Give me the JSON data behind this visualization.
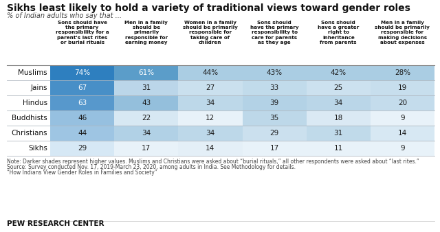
{
  "title": "Sikhs least likely to hold a variety of traditional views toward gender roles",
  "subtitle": "% of Indian adults who say that ...",
  "col_headers": [
    "Sons should have\nthe primary\nresponsibility for a\nparent's last rites\nor burial rituals",
    "Men in a family\nshould be\nprimarily\nresponsible for\nearning money",
    "Women in a family\nshould be primarily\nresponsible for\ntaking care of\nchildren",
    "Sons should\nhave the primary\nresponsibility to\ncare for parents\nas they age",
    "Sons should\nhave a greater\nright to\ninheritance\nfrom parents",
    "Men in a family\nshould be primarily\nresponsible for\nmaking decisions\nabout expenses"
  ],
  "rows": [
    "Muslims",
    "Jains",
    "Hindus",
    "Buddhists",
    "Christians",
    "Sikhs"
  ],
  "data": [
    [
      74,
      61,
      44,
      43,
      42,
      28
    ],
    [
      67,
      31,
      27,
      33,
      25,
      19
    ],
    [
      63,
      43,
      34,
      39,
      34,
      20
    ],
    [
      46,
      22,
      12,
      35,
      18,
      9
    ],
    [
      44,
      34,
      34,
      29,
      31,
      14
    ],
    [
      29,
      17,
      14,
      17,
      11,
      9
    ]
  ],
  "note_lines": [
    "Note: Darker shades represent higher values. Muslims and Christians were asked about “burial rituals,” all other respondents were asked about “last rites.”",
    "Source: Survey conducted Nov. 17, 2019-March 23, 2020, among adults in India. See Methodology for details.",
    "“How Indians View Gender Roles in Families and Society”"
  ],
  "footer": "PEW RESEARCH CENTER",
  "bg_color": "#ffffff",
  "col0_dark": "#2e7fbf",
  "col0_light": "#d6e8f5",
  "col1_dark": "#5b9dc9",
  "col1_light": "#e8f2f9",
  "coln_dark": "#aacde3",
  "coln_light": "#e8f2f9"
}
